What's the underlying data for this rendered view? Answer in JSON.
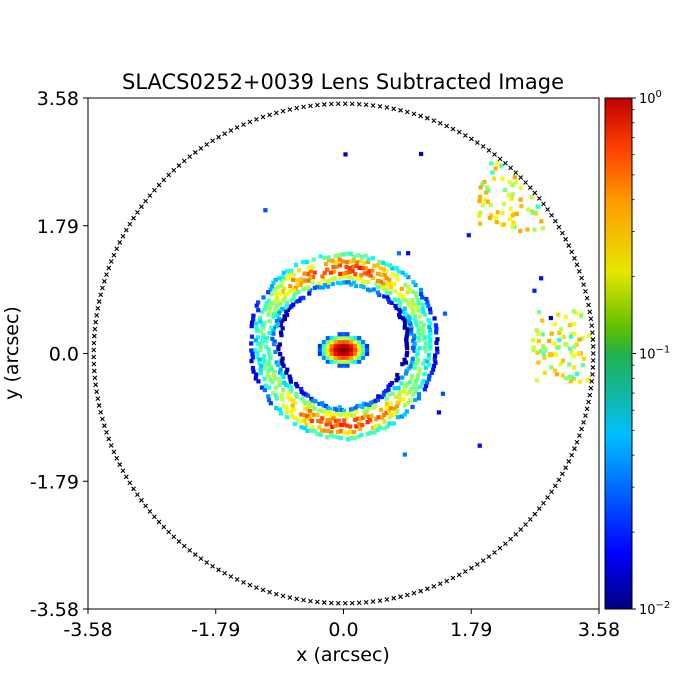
{
  "chart_data": {
    "type": "heatmap",
    "title": "SLACS0252+0039 Lens Subtracted Image",
    "xlabel": "x (arcsec)",
    "ylabel": "y (arcsec)",
    "xlim": [
      -3.58,
      3.58
    ],
    "ylim": [
      -3.58,
      3.58
    ],
    "xticks": [
      -3.58,
      -1.79,
      0.0,
      1.79,
      3.58
    ],
    "xtick_labels": [
      "-3.58",
      "-1.79",
      "0.0",
      "1.79",
      "3.58"
    ],
    "yticks": [
      -3.58,
      -1.79,
      0.0,
      1.79,
      3.58
    ],
    "ytick_labels": [
      "-3.58",
      "-1.79",
      "0.0",
      "1.79",
      "3.58"
    ],
    "colorscale": "jet",
    "colorbar": {
      "scale": "log",
      "range": [
        0.01,
        1
      ],
      "ticks": [
        0.01,
        0.1,
        1
      ],
      "tick_labels": [
        "10",
        "10",
        "10"
      ],
      "tick_exponents": [
        "−2",
        "−1",
        "0"
      ]
    },
    "mask_circle_radius_arcsec": 3.5,
    "features": [
      {
        "name": "lens galaxy core residual",
        "center": [
          0.0,
          0.05
        ],
        "peak": 1.0
      },
      {
        "name": "einstein ring",
        "center": [
          0.0,
          0.1
        ],
        "radius_arcsec": 1.1,
        "typical": 0.25
      },
      {
        "name": "upper-right residual patch",
        "center": [
          2.35,
          2.2
        ],
        "typical": 0.15
      },
      {
        "name": "right residual patch",
        "center": [
          3.1,
          0.1
        ],
        "typical": 0.15
      }
    ]
  }
}
